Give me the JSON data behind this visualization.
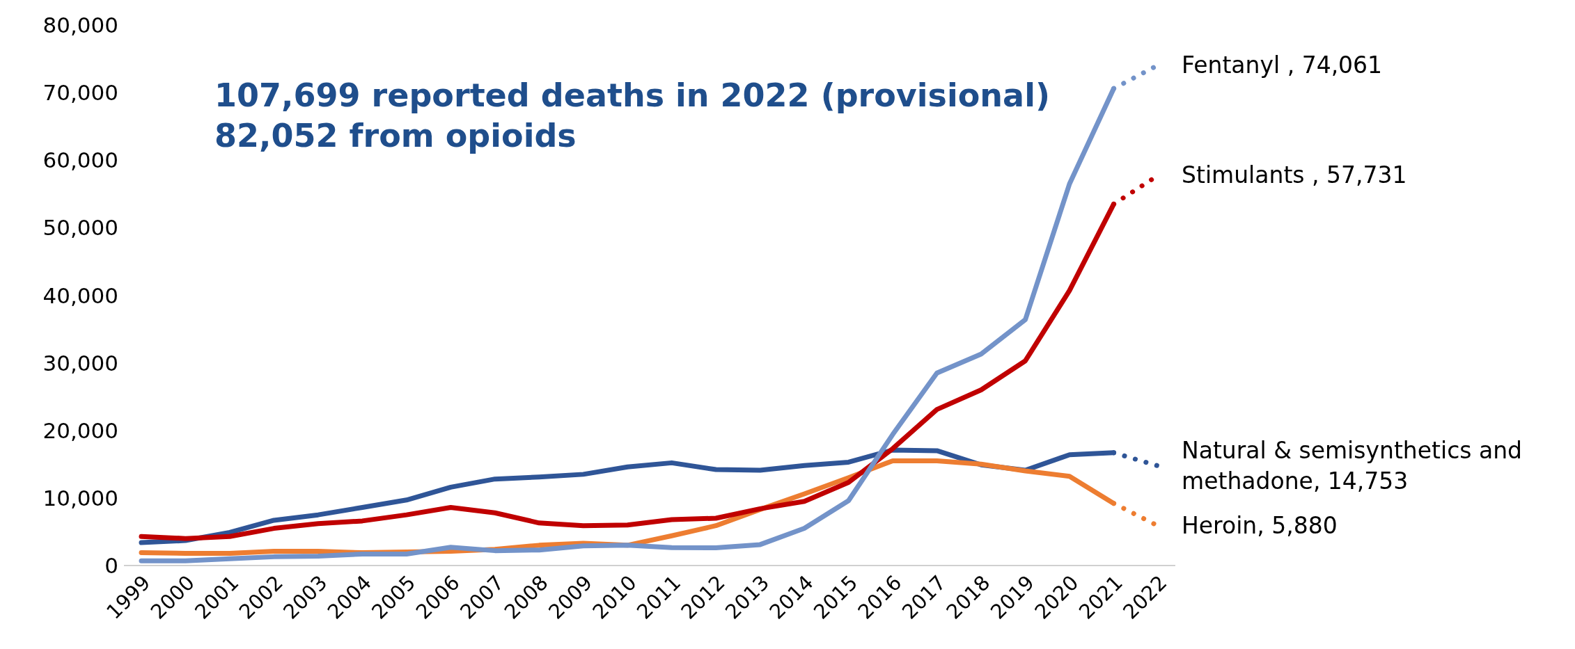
{
  "chart_data": {
    "type": "line",
    "categories": [
      "1999",
      "2000",
      "2001",
      "2002",
      "2003",
      "2004",
      "2005",
      "2006",
      "2007",
      "2008",
      "2009",
      "2010",
      "2011",
      "2012",
      "2013",
      "2014",
      "2015",
      "2016",
      "2017",
      "2018",
      "2019",
      "2020",
      "2021",
      "2022"
    ],
    "series": [
      {
        "color": "#2f5597",
        "line_style": "solid",
        "values": [
          3400,
          3700,
          4900,
          6700,
          7500,
          8600,
          9700,
          11600,
          12800,
          13100,
          13500,
          14600,
          15200,
          14200,
          14100,
          14800,
          15300,
          17100,
          17000,
          14900,
          14100,
          16400,
          16700,
          null
        ]
      },
      {
        "color": "#ed7d31",
        "line_style": "solid",
        "values": [
          1900,
          1800,
          1800,
          2100,
          2100,
          1900,
          2000,
          2100,
          2400,
          3000,
          3300,
          3000,
          4400,
          5900,
          8300,
          10600,
          13000,
          15500,
          15500,
          15000,
          14000,
          13200,
          9200,
          null
        ]
      },
      {
        "color": "#c00000",
        "line_style": "solid",
        "values": [
          4300,
          4000,
          4300,
          5500,
          6200,
          6600,
          7500,
          8600,
          7800,
          6300,
          5900,
          6000,
          6800,
          7000,
          8400,
          9500,
          12300,
          17300,
          23100,
          26000,
          30300,
          40700,
          53500,
          null
        ]
      },
      {
        "color": "#7393c9",
        "line_style": "solid",
        "values": [
          700,
          700,
          1000,
          1300,
          1400,
          1700,
          1700,
          2700,
          2200,
          2300,
          2900,
          3000,
          2650,
          2630,
          3100,
          5500,
          9600,
          19400,
          28500,
          31300,
          36400,
          56500,
          70600,
          null
        ]
      },
      {
        "color": "#2f5597",
        "line_style": "dotted",
        "values": [
          null,
          null,
          null,
          null,
          null,
          null,
          null,
          null,
          null,
          null,
          null,
          null,
          null,
          null,
          null,
          null,
          null,
          null,
          null,
          null,
          null,
          null,
          16700,
          14753
        ],
        "value_labels": [
          null,
          null,
          null,
          null,
          null,
          null,
          null,
          null,
          null,
          null,
          null,
          null,
          null,
          null,
          null,
          null,
          null,
          null,
          null,
          null,
          null,
          null,
          null,
          "Natural & semisynthetics and methadone, 14,753"
        ]
      },
      {
        "color": "#ed7d31",
        "line_style": "dotted",
        "values": [
          null,
          null,
          null,
          null,
          null,
          null,
          null,
          null,
          null,
          null,
          null,
          null,
          null,
          null,
          null,
          null,
          null,
          null,
          null,
          null,
          null,
          null,
          9200,
          5880
        ],
        "value_labels": [
          null,
          null,
          null,
          null,
          null,
          null,
          null,
          null,
          null,
          null,
          null,
          null,
          null,
          null,
          null,
          null,
          null,
          null,
          null,
          null,
          null,
          null,
          null,
          "Heroin, 5,880"
        ]
      },
      {
        "color": "#c00000",
        "line_style": "dotted",
        "values": [
          null,
          null,
          null,
          null,
          null,
          null,
          null,
          null,
          null,
          null,
          null,
          null,
          null,
          null,
          null,
          null,
          null,
          null,
          null,
          null,
          null,
          null,
          53500,
          57731
        ],
        "value_labels": [
          null,
          null,
          null,
          null,
          null,
          null,
          null,
          null,
          null,
          null,
          null,
          null,
          null,
          null,
          null,
          null,
          null,
          null,
          null,
          null,
          null,
          null,
          null,
          "Stimulants , 57,731"
        ]
      },
      {
        "color": "#7393c9",
        "line_style": "dotted",
        "values": [
          null,
          null,
          null,
          null,
          null,
          null,
          null,
          null,
          null,
          null,
          null,
          null,
          null,
          null,
          null,
          null,
          null,
          null,
          null,
          null,
          null,
          null,
          70600,
          74061
        ],
        "value_labels": [
          null,
          null,
          null,
          null,
          null,
          null,
          null,
          null,
          null,
          null,
          null,
          null,
          null,
          null,
          null,
          null,
          null,
          null,
          null,
          null,
          null,
          null,
          null,
          "Fentanyl , 74,061"
        ]
      }
    ],
    "ylim": [
      0,
      80000
    ],
    "yticks": [
      0,
      {
        "value": 10000,
        "label": "10,000"
      },
      {
        "value": 20000,
        "label": "20,000"
      },
      {
        "value": 30000,
        "label": "30,000"
      },
      {
        "value": 40000,
        "label": "40,000"
      },
      {
        "value": 50000,
        "label": "50,000"
      },
      {
        "value": 60000,
        "label": "60,000"
      },
      {
        "value": 70000,
        "label": "70,000"
      },
      {
        "value": 80000,
        "label": "80,000"
      }
    ],
    "grid": false,
    "marker": "none",
    "annotations": [
      "107,699 reported deaths in 2022 (provisional)",
      "82,052 from opioids"
    ]
  }
}
